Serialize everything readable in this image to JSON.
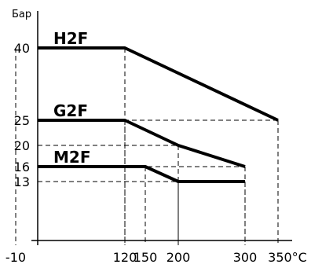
{
  "chart_data": {
    "type": "line",
    "ylabel": "Бар",
    "x_unit_suffix": "°C",
    "x_ticks": [
      {
        "value": -10,
        "label": "-10"
      },
      {
        "value": 120,
        "label": "120"
      },
      {
        "value": 150,
        "label": "150"
      },
      {
        "value": 200,
        "label": "200"
      },
      {
        "value": 300,
        "label": "300"
      },
      {
        "value": 350,
        "label": "350°C"
      }
    ],
    "y_ticks": [
      {
        "value": 40,
        "label": "40"
      },
      {
        "value": 25,
        "label": "25"
      },
      {
        "value": 20,
        "label": "20"
      },
      {
        "value": 16,
        "label": "16"
      },
      {
        "value": 13,
        "label": "13"
      }
    ],
    "series": [
      {
        "name": "H2F",
        "points": [
          [
            -10,
            40
          ],
          [
            120,
            40
          ],
          [
            350,
            25
          ]
        ]
      },
      {
        "name": "G2F",
        "points": [
          [
            -10,
            25
          ],
          [
            120,
            25
          ],
          [
            200,
            20
          ],
          [
            300,
            16
          ]
        ]
      },
      {
        "name": "M2F",
        "points": [
          [
            -10,
            16
          ],
          [
            150,
            16
          ],
          [
            200,
            13
          ],
          [
            300,
            13
          ]
        ]
      }
    ],
    "grid": "dashed guide lines to axes at breakpoints",
    "legend": "none; series names placed above each line"
  }
}
